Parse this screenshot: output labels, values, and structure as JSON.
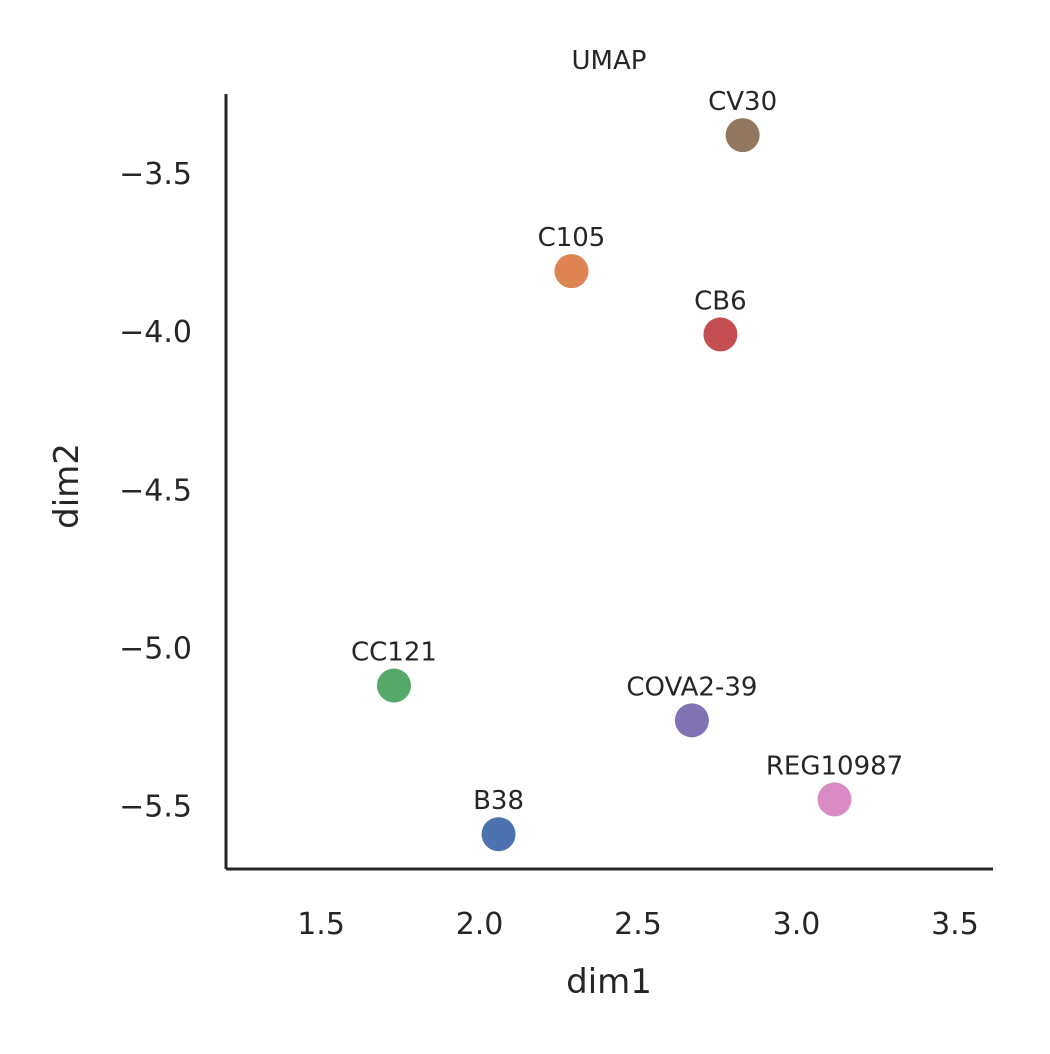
{
  "chart_data": {
    "type": "scatter",
    "title": "UMAP",
    "xlabel": "dim1",
    "ylabel": "dim2",
    "xlim": [
      1.2,
      3.62
    ],
    "ylim": [
      -5.7,
      -3.25
    ],
    "xticks": [
      1.5,
      2.0,
      2.5,
      3.0,
      3.5
    ],
    "yticks": [
      -3.5,
      -4.0,
      -4.5,
      -5.0,
      -5.5
    ],
    "xtick_labels": [
      "1.5",
      "2.0",
      "2.5",
      "3.0",
      "3.5"
    ],
    "ytick_labels": [
      "−3.5",
      "−4.0",
      "−4.5",
      "−5.0",
      "−5.5"
    ],
    "grid": false,
    "points": [
      {
        "label": "B38",
        "x": 2.06,
        "y": -5.59,
        "color": "#4c72b0"
      },
      {
        "label": "C105",
        "x": 2.29,
        "y": -3.81,
        "color": "#dd8452"
      },
      {
        "label": "CC121",
        "x": 1.73,
        "y": -5.12,
        "color": "#55a868"
      },
      {
        "label": "CB6",
        "x": 2.76,
        "y": -4.01,
        "color": "#c44e52"
      },
      {
        "label": "COVA2-39",
        "x": 2.67,
        "y": -5.23,
        "color": "#8172b3"
      },
      {
        "label": "CV30",
        "x": 2.83,
        "y": -3.38,
        "color": "#937860"
      },
      {
        "label": "REG10987",
        "x": 3.12,
        "y": -5.48,
        "color": "#da8bc3"
      }
    ]
  }
}
